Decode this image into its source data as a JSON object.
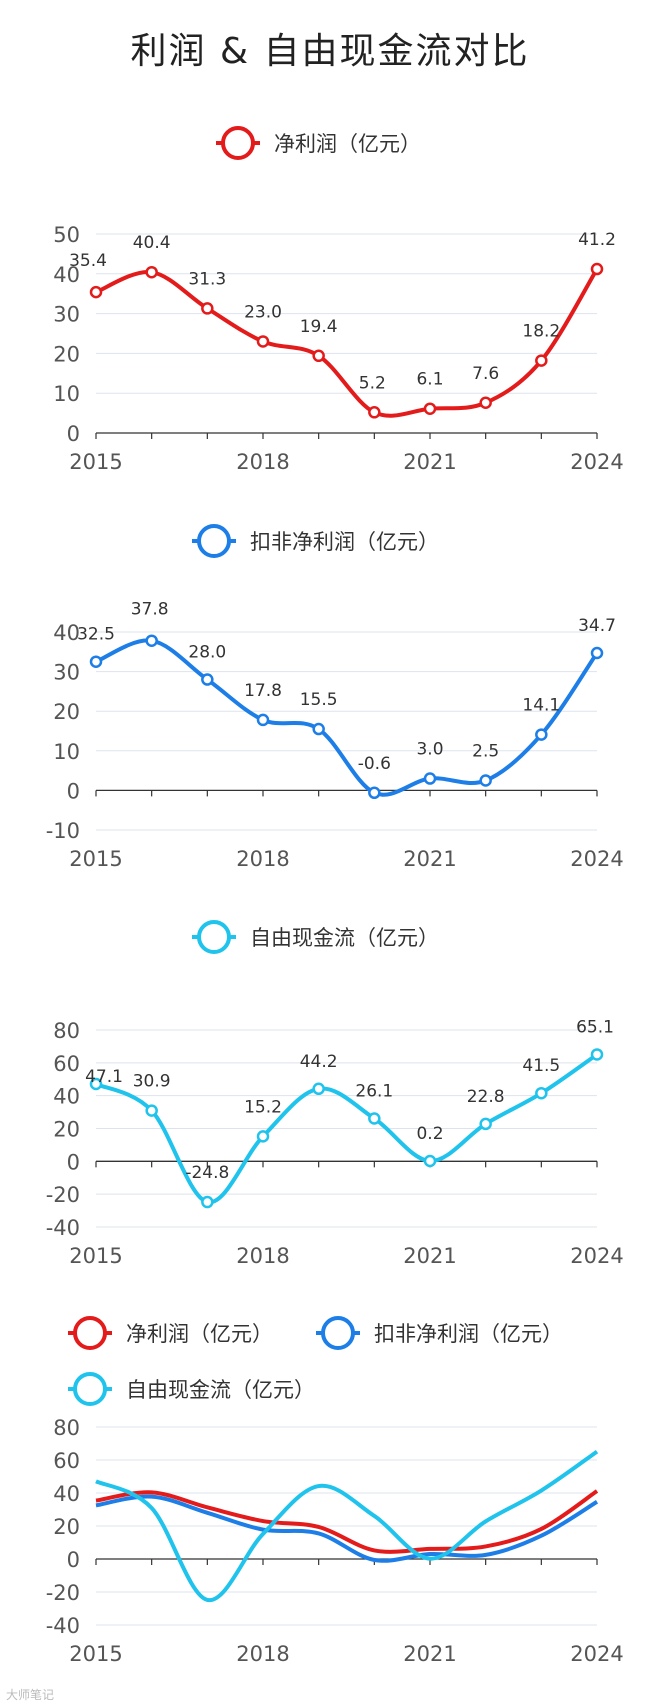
{
  "title": "利润 & 自由现金流对比",
  "watermark": "大师笔记",
  "colors": {
    "net": "#e31b1b",
    "deducted": "#1c7ee6",
    "fcf": "#1fc3ec"
  },
  "chart_data": [
    {
      "type": "line",
      "legend": [
        "净利润（亿元）"
      ],
      "x": [
        2015,
        2016,
        2017,
        2018,
        2019,
        2020,
        2021,
        2022,
        2023,
        2024
      ],
      "x_tick_labels": [
        "2015",
        "2018",
        "2021",
        "2024"
      ],
      "y_ticks": [
        "0",
        "10",
        "20",
        "30",
        "40",
        "50"
      ],
      "ylim": [
        0,
        50
      ],
      "series": [
        {
          "name": "净利润（亿元）",
          "values": [
            35.4,
            40.4,
            31.3,
            23.0,
            19.4,
            5.2,
            6.1,
            7.6,
            18.2,
            41.2
          ],
          "labels": [
            "35.4",
            "40.4",
            "31.3",
            "23.0",
            "19.4",
            "5.2",
            "6.1",
            "7.6",
            "18.2",
            "41.2"
          ]
        }
      ]
    },
    {
      "type": "line",
      "legend": [
        "扣非净利润（亿元）"
      ],
      "x": [
        2015,
        2016,
        2017,
        2018,
        2019,
        2020,
        2021,
        2022,
        2023,
        2024
      ],
      "x_tick_labels": [
        "2015",
        "2018",
        "2021",
        "2024"
      ],
      "y_ticks": [
        "-10",
        "0",
        "10",
        "20",
        "30",
        "40"
      ],
      "ylim": [
        -10,
        40
      ],
      "series": [
        {
          "name": "扣非净利润（亿元）",
          "values": [
            32.5,
            37.8,
            28.0,
            17.8,
            15.5,
            -0.6,
            3.0,
            2.5,
            14.1,
            34.7
          ],
          "labels": [
            "32.5",
            "37.8",
            "28.0",
            "17.8",
            "15.5",
            "-0.6",
            "3.0",
            "2.5",
            "14.1",
            "34.7"
          ]
        }
      ]
    },
    {
      "type": "line",
      "legend": [
        "自由现金流（亿元）"
      ],
      "x": [
        2015,
        2016,
        2017,
        2018,
        2019,
        2020,
        2021,
        2022,
        2023,
        2024
      ],
      "x_tick_labels": [
        "2015",
        "2018",
        "2021",
        "2024"
      ],
      "y_ticks": [
        "-40",
        "-20",
        "0",
        "20",
        "40",
        "60",
        "80"
      ],
      "ylim": [
        -40,
        80
      ],
      "series": [
        {
          "name": "自由现金流（亿元）",
          "values": [
            47.1,
            30.9,
            -24.8,
            15.2,
            44.2,
            26.1,
            0.2,
            22.8,
            41.5,
            65.1
          ],
          "labels": [
            "47.1",
            "30.9",
            "-24.8",
            "15.2",
            "44.2",
            "26.1",
            "0.2",
            "22.8",
            "41.5",
            "65.1"
          ]
        }
      ]
    },
    {
      "type": "line",
      "legend": [
        "净利润（亿元）",
        "扣非净利润（亿元）",
        "自由现金流（亿元）"
      ],
      "x": [
        2015,
        2016,
        2017,
        2018,
        2019,
        2020,
        2021,
        2022,
        2023,
        2024
      ],
      "x_tick_labels": [
        "2015",
        "2018",
        "2021",
        "2024"
      ],
      "y_ticks": [
        "-40",
        "-20",
        "0",
        "20",
        "40",
        "60",
        "80"
      ],
      "ylim": [
        -40,
        80
      ],
      "series": [
        {
          "name": "净利润（亿元）",
          "values": [
            35.4,
            40.4,
            31.3,
            23.0,
            19.4,
            5.2,
            6.1,
            7.6,
            18.2,
            41.2
          ]
        },
        {
          "name": "扣非净利润（亿元）",
          "values": [
            32.5,
            37.8,
            28.0,
            17.8,
            15.5,
            -0.6,
            3.0,
            2.5,
            14.1,
            34.7
          ]
        },
        {
          "name": "自由现金流（亿元）",
          "values": [
            47.1,
            30.9,
            -24.8,
            15.2,
            44.2,
            26.1,
            0.2,
            22.8,
            41.5,
            65.1
          ]
        }
      ]
    }
  ]
}
